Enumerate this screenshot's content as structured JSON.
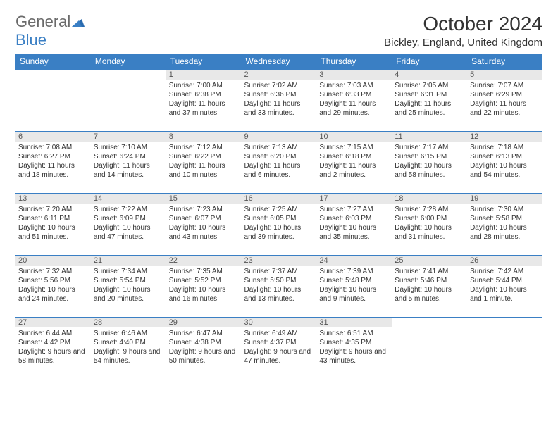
{
  "logo": {
    "part1": "General",
    "part2": "Blue"
  },
  "title": "October 2024",
  "location": "Bickley, England, United Kingdom",
  "colors": {
    "header_bg": "#3a7fc4",
    "header_text": "#ffffff",
    "daynum_bg": "#e8e8e8",
    "border": "#3a7fc4",
    "text": "#333333",
    "logo_gray": "#6b6b6b",
    "logo_blue": "#3a7fc4"
  },
  "day_headers": [
    "Sunday",
    "Monday",
    "Tuesday",
    "Wednesday",
    "Thursday",
    "Friday",
    "Saturday"
  ],
  "weeks": [
    [
      null,
      null,
      {
        "n": "1",
        "sr": "Sunrise: 7:00 AM",
        "ss": "Sunset: 6:38 PM",
        "dl": "Daylight: 11 hours and 37 minutes."
      },
      {
        "n": "2",
        "sr": "Sunrise: 7:02 AM",
        "ss": "Sunset: 6:36 PM",
        "dl": "Daylight: 11 hours and 33 minutes."
      },
      {
        "n": "3",
        "sr": "Sunrise: 7:03 AM",
        "ss": "Sunset: 6:33 PM",
        "dl": "Daylight: 11 hours and 29 minutes."
      },
      {
        "n": "4",
        "sr": "Sunrise: 7:05 AM",
        "ss": "Sunset: 6:31 PM",
        "dl": "Daylight: 11 hours and 25 minutes."
      },
      {
        "n": "5",
        "sr": "Sunrise: 7:07 AM",
        "ss": "Sunset: 6:29 PM",
        "dl": "Daylight: 11 hours and 22 minutes."
      }
    ],
    [
      {
        "n": "6",
        "sr": "Sunrise: 7:08 AM",
        "ss": "Sunset: 6:27 PM",
        "dl": "Daylight: 11 hours and 18 minutes."
      },
      {
        "n": "7",
        "sr": "Sunrise: 7:10 AM",
        "ss": "Sunset: 6:24 PM",
        "dl": "Daylight: 11 hours and 14 minutes."
      },
      {
        "n": "8",
        "sr": "Sunrise: 7:12 AM",
        "ss": "Sunset: 6:22 PM",
        "dl": "Daylight: 11 hours and 10 minutes."
      },
      {
        "n": "9",
        "sr": "Sunrise: 7:13 AM",
        "ss": "Sunset: 6:20 PM",
        "dl": "Daylight: 11 hours and 6 minutes."
      },
      {
        "n": "10",
        "sr": "Sunrise: 7:15 AM",
        "ss": "Sunset: 6:18 PM",
        "dl": "Daylight: 11 hours and 2 minutes."
      },
      {
        "n": "11",
        "sr": "Sunrise: 7:17 AM",
        "ss": "Sunset: 6:15 PM",
        "dl": "Daylight: 10 hours and 58 minutes."
      },
      {
        "n": "12",
        "sr": "Sunrise: 7:18 AM",
        "ss": "Sunset: 6:13 PM",
        "dl": "Daylight: 10 hours and 54 minutes."
      }
    ],
    [
      {
        "n": "13",
        "sr": "Sunrise: 7:20 AM",
        "ss": "Sunset: 6:11 PM",
        "dl": "Daylight: 10 hours and 51 minutes."
      },
      {
        "n": "14",
        "sr": "Sunrise: 7:22 AM",
        "ss": "Sunset: 6:09 PM",
        "dl": "Daylight: 10 hours and 47 minutes."
      },
      {
        "n": "15",
        "sr": "Sunrise: 7:23 AM",
        "ss": "Sunset: 6:07 PM",
        "dl": "Daylight: 10 hours and 43 minutes."
      },
      {
        "n": "16",
        "sr": "Sunrise: 7:25 AM",
        "ss": "Sunset: 6:05 PM",
        "dl": "Daylight: 10 hours and 39 minutes."
      },
      {
        "n": "17",
        "sr": "Sunrise: 7:27 AM",
        "ss": "Sunset: 6:03 PM",
        "dl": "Daylight: 10 hours and 35 minutes."
      },
      {
        "n": "18",
        "sr": "Sunrise: 7:28 AM",
        "ss": "Sunset: 6:00 PM",
        "dl": "Daylight: 10 hours and 31 minutes."
      },
      {
        "n": "19",
        "sr": "Sunrise: 7:30 AM",
        "ss": "Sunset: 5:58 PM",
        "dl": "Daylight: 10 hours and 28 minutes."
      }
    ],
    [
      {
        "n": "20",
        "sr": "Sunrise: 7:32 AM",
        "ss": "Sunset: 5:56 PM",
        "dl": "Daylight: 10 hours and 24 minutes."
      },
      {
        "n": "21",
        "sr": "Sunrise: 7:34 AM",
        "ss": "Sunset: 5:54 PM",
        "dl": "Daylight: 10 hours and 20 minutes."
      },
      {
        "n": "22",
        "sr": "Sunrise: 7:35 AM",
        "ss": "Sunset: 5:52 PM",
        "dl": "Daylight: 10 hours and 16 minutes."
      },
      {
        "n": "23",
        "sr": "Sunrise: 7:37 AM",
        "ss": "Sunset: 5:50 PM",
        "dl": "Daylight: 10 hours and 13 minutes."
      },
      {
        "n": "24",
        "sr": "Sunrise: 7:39 AM",
        "ss": "Sunset: 5:48 PM",
        "dl": "Daylight: 10 hours and 9 minutes."
      },
      {
        "n": "25",
        "sr": "Sunrise: 7:41 AM",
        "ss": "Sunset: 5:46 PM",
        "dl": "Daylight: 10 hours and 5 minutes."
      },
      {
        "n": "26",
        "sr": "Sunrise: 7:42 AM",
        "ss": "Sunset: 5:44 PM",
        "dl": "Daylight: 10 hours and 1 minute."
      }
    ],
    [
      {
        "n": "27",
        "sr": "Sunrise: 6:44 AM",
        "ss": "Sunset: 4:42 PM",
        "dl": "Daylight: 9 hours and 58 minutes."
      },
      {
        "n": "28",
        "sr": "Sunrise: 6:46 AM",
        "ss": "Sunset: 4:40 PM",
        "dl": "Daylight: 9 hours and 54 minutes."
      },
      {
        "n": "29",
        "sr": "Sunrise: 6:47 AM",
        "ss": "Sunset: 4:38 PM",
        "dl": "Daylight: 9 hours and 50 minutes."
      },
      {
        "n": "30",
        "sr": "Sunrise: 6:49 AM",
        "ss": "Sunset: 4:37 PM",
        "dl": "Daylight: 9 hours and 47 minutes."
      },
      {
        "n": "31",
        "sr": "Sunrise: 6:51 AM",
        "ss": "Sunset: 4:35 PM",
        "dl": "Daylight: 9 hours and 43 minutes."
      },
      null,
      null
    ]
  ]
}
